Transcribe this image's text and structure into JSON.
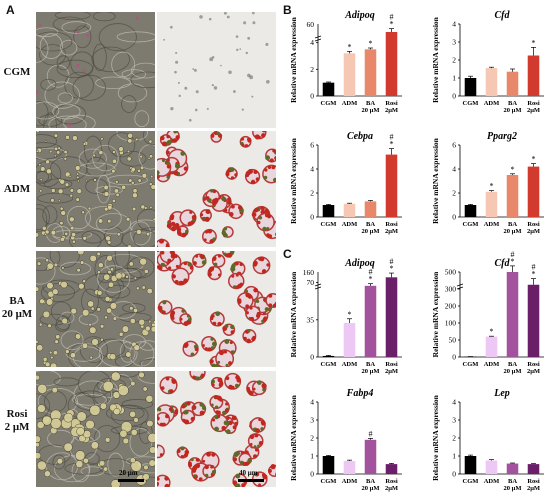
{
  "panels": {
    "a_letter": "A",
    "b_letter": "B",
    "c_letter": "C"
  },
  "micrographs": {
    "rows": [
      {
        "label": "CGM",
        "left_style": "phase-fibro",
        "right_style": "oil-red-empty"
      },
      {
        "label": "ADM",
        "left_style": "phase-lipid-small",
        "right_style": "oil-red-dense"
      },
      {
        "label": "BA\n20 μM",
        "left_style": "phase-lipid-medium",
        "right_style": "oil-red-dense"
      },
      {
        "label": "Rosi\n2 μM",
        "left_style": "phase-lipid-large",
        "right_style": "oil-red-dense"
      }
    ],
    "scale_left": "20 μm",
    "scale_right": "40 μm"
  },
  "chart_data": [
    {
      "type": "bar",
      "panel": "B",
      "gene": "Adipoq",
      "ylabel": "Relative mRNA expression",
      "categories": [
        "CGM",
        "ADM",
        "BA\n20 μM",
        "Rosi\n2μM"
      ],
      "values": [
        1.0,
        3.2,
        3.5,
        4.8
      ],
      "errors": [
        0.05,
        0.15,
        0.1,
        0.25
      ],
      "markers": [
        "",
        "*",
        "*",
        "#\n*"
      ],
      "colors": [
        "#000000",
        "#f6c8b4",
        "#e9876b",
        "#d23a2e"
      ],
      "ylim": [
        0,
        5.4
      ],
      "ticks": [
        0,
        2,
        4
      ],
      "axis_break": true,
      "top_tick": "60"
    },
    {
      "type": "bar",
      "panel": "B",
      "gene": "Cfd",
      "ylabel": "Relative mRNA expression",
      "categories": [
        "CGM",
        "ADM",
        "BA\n20 μM",
        "Rosi\n2μM"
      ],
      "values": [
        1.0,
        1.55,
        1.35,
        2.25
      ],
      "errors": [
        0.1,
        0.05,
        0.15,
        0.45
      ],
      "markers": [
        "",
        "",
        "",
        "*"
      ],
      "colors": [
        "#000000",
        "#f6c8b4",
        "#e9876b",
        "#d23a2e"
      ],
      "ylim": [
        0,
        4
      ],
      "ticks": [
        0,
        1,
        2,
        3,
        4
      ],
      "axis_break": false
    },
    {
      "type": "bar",
      "panel": "B",
      "gene": "Cebpa",
      "ylabel": "Relative mRNA expression",
      "categories": [
        "CGM",
        "ADM",
        "BA\n20 μM",
        "Rosi\n2μM"
      ],
      "values": [
        1.0,
        1.1,
        1.3,
        5.2
      ],
      "errors": [
        0.05,
        0.05,
        0.08,
        0.5
      ],
      "markers": [
        "",
        "",
        "",
        "#\n*"
      ],
      "colors": [
        "#000000",
        "#f6c8b4",
        "#e9876b",
        "#d23a2e"
      ],
      "ylim": [
        0,
        6
      ],
      "ticks": [
        0,
        2,
        4,
        6
      ],
      "axis_break": false
    },
    {
      "type": "bar",
      "panel": "B",
      "gene": "Pparg2",
      "ylabel": "Relative mRNA expression",
      "categories": [
        "CGM",
        "ADM",
        "BA\n20 μM",
        "Rosi\n2μM"
      ],
      "values": [
        1.0,
        2.1,
        3.5,
        4.2
      ],
      "errors": [
        0.05,
        0.1,
        0.1,
        0.25
      ],
      "markers": [
        "",
        "*",
        "*",
        "*"
      ],
      "colors": [
        "#000000",
        "#f6c8b4",
        "#e9876b",
        "#d23a2e"
      ],
      "ylim": [
        0,
        6
      ],
      "ticks": [
        0,
        2,
        4,
        6
      ],
      "axis_break": false
    },
    {
      "type": "bar",
      "panel": "C",
      "gene": "Adipoq",
      "ylabel": "Relative mRNA expression",
      "categories": [
        "CGM",
        "ADM",
        "BA\n20 μM",
        "Rosi\n2μM"
      ],
      "values": [
        1.0,
        32.0,
        67.0,
        75.0
      ],
      "errors": [
        0.5,
        4.0,
        2.0,
        4.0
      ],
      "markers": [
        "",
        "*",
        "#\n*",
        "#\n*"
      ],
      "colors": [
        "#000000",
        "#eec8f4",
        "#a3539e",
        "#6b1f69"
      ],
      "ylim": [
        0,
        80
      ],
      "ticks": [
        0,
        35,
        70
      ],
      "axis_break": true,
      "top_tick": "160"
    },
    {
      "type": "bar",
      "panel": "C",
      "gene": "Cfd",
      "ylabel": "Relative mRNA expression",
      "categories": [
        "CGM",
        "ADM",
        "BA\n20 μM",
        "Rosi\n2μM"
      ],
      "values": [
        1.0,
        60.0,
        500.0,
        350.0
      ],
      "errors": [
        0.5,
        2.0,
        30.0,
        30.0
      ],
      "markers": [
        "",
        "*",
        "#\n*",
        "#\n*"
      ],
      "colors": [
        "#000000",
        "#eec8f4",
        "#a3539e",
        "#6b1f69"
      ],
      "ylim": [
        0,
        500
      ],
      "ticks": [
        0,
        50,
        100,
        200,
        300,
        500
      ],
      "axis_break": true
    },
    {
      "type": "bar",
      "panel": "C",
      "gene": "Fabp4",
      "ylabel": "Relative mRNA expression",
      "categories": [
        "CGM",
        "ADM",
        "BA\n20 μM",
        "Rosi\n2μM"
      ],
      "values": [
        1.0,
        0.72,
        1.9,
        0.55
      ],
      "errors": [
        0.03,
        0.05,
        0.08,
        0.04
      ],
      "markers": [
        "",
        "",
        "#",
        ""
      ],
      "colors": [
        "#000000",
        "#eec8f4",
        "#a3539e",
        "#6b1f69"
      ],
      "ylim": [
        0,
        4
      ],
      "ticks": [
        0,
        1,
        2,
        3,
        4
      ],
      "axis_break": false
    },
    {
      "type": "bar",
      "panel": "C",
      "gene": "Lep",
      "ylabel": "Relative mRNA expression",
      "categories": [
        "CGM",
        "ADM",
        "BA\n20 μM",
        "Rosi\n2μM"
      ],
      "values": [
        1.0,
        0.75,
        0.58,
        0.55
      ],
      "errors": [
        0.05,
        0.05,
        0.03,
        0.03
      ],
      "markers": [
        "",
        "",
        "",
        ""
      ],
      "colors": [
        "#000000",
        "#eec8f4",
        "#a3539e",
        "#6b1f69"
      ],
      "ylim": [
        0,
        4
      ],
      "ticks": [
        0,
        1,
        2,
        3,
        4
      ],
      "axis_break": false
    }
  ]
}
